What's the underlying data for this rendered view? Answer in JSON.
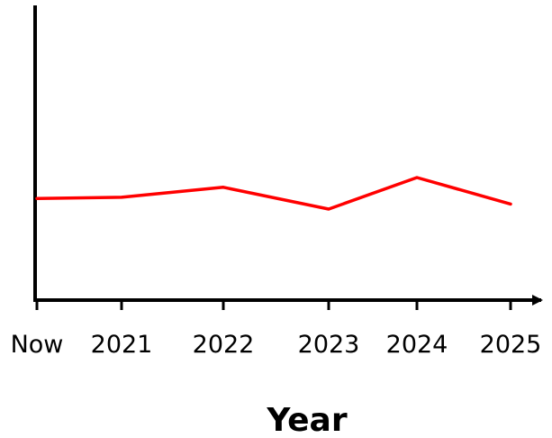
{
  "chart_data": {
    "type": "line",
    "title": "",
    "xlabel": "Year",
    "ylabel": "",
    "categories": [
      "Now",
      "2021",
      "2022",
      "2023",
      "2024",
      "2025"
    ],
    "series": [
      {
        "values": [
          34.5,
          34.9,
          38.3,
          30.9,
          41.6,
          32.6
        ],
        "color": "#ff0000"
      }
    ],
    "ylim": [
      0,
      100
    ],
    "y_ticks_shown": false,
    "grid": false,
    "legend": "none",
    "axis_color": "#000000"
  }
}
